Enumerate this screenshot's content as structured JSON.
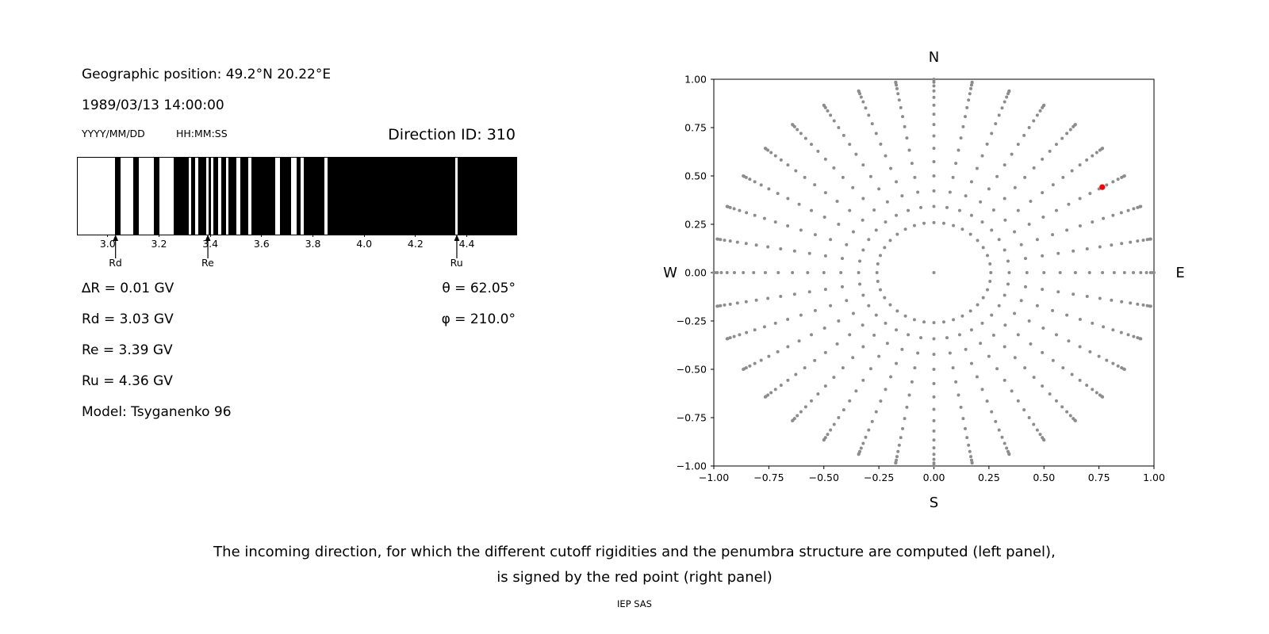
{
  "header": {
    "geographic_position": "Geographic position: 49.2°N 20.22°E",
    "datetime": "1989/03/13 14:00:00",
    "date_format": "YYYY/MM/DD",
    "time_format": "HH:MM:SS",
    "direction_id": "Direction ID: 310"
  },
  "params": {
    "delta_r": "∆R = 0.01 GV",
    "rd": "Rd = 3.03 GV",
    "re": "Re = 3.39 GV",
    "ru": "Ru = 4.36 GV",
    "model": "Model: Tsyganenko 96",
    "theta": "θ = 62.05°",
    "phi": "φ = 210.0°"
  },
  "caption": {
    "line1": "The incoming direction, for which the different cutoff rigidities and the penumbra structure are computed (left panel),",
    "line2": "is signed by the red point (right panel)",
    "credit": "IEP SAS"
  },
  "chart_data": [
    {
      "name": "penumbra_structure",
      "type": "bar",
      "description": "Cosmic-ray penumbra barcode: black bands = allowed rigidity intervals, white = forbidden",
      "xlim": [
        2.88,
        4.59
      ],
      "xticks": [
        3.0,
        3.2,
        3.4,
        3.6,
        3.8,
        4.0,
        4.2,
        4.4
      ],
      "band_color": "#000000",
      "background": "#ffffff",
      "allowed_bands_gv": [
        [
          3.025,
          3.048
        ],
        [
          3.095,
          3.118
        ],
        [
          3.178,
          3.2
        ],
        [
          3.255,
          3.313
        ],
        [
          3.323,
          3.338
        ],
        [
          3.35,
          3.38
        ],
        [
          3.391,
          3.399
        ],
        [
          3.409,
          3.427
        ],
        [
          3.439,
          3.457
        ],
        [
          3.469,
          3.5
        ],
        [
          3.513,
          3.545
        ],
        [
          3.556,
          3.65
        ],
        [
          3.67,
          3.712
        ],
        [
          3.732,
          3.749
        ],
        [
          3.76,
          3.843
        ],
        [
          3.853,
          4.352
        ],
        [
          4.362,
          4.59
        ]
      ],
      "markers": [
        {
          "label": "Rd",
          "value_gv": 3.03
        },
        {
          "label": "Re",
          "value_gv": 3.39
        },
        {
          "label": "Ru",
          "value_gv": 4.36
        }
      ]
    },
    {
      "name": "incoming_directions",
      "type": "scatter",
      "xlim": [
        -1,
        1
      ],
      "ylim": [
        -1,
        1
      ],
      "xticks": [
        -1.0,
        -0.75,
        -0.5,
        -0.25,
        0.0,
        0.25,
        0.5,
        0.75,
        1.0
      ],
      "yticks": [
        -1.0,
        -0.75,
        -0.5,
        -0.25,
        0.0,
        0.25,
        0.5,
        0.75,
        1.0
      ],
      "grid": false,
      "compass_labels": {
        "top": "N",
        "bottom": "S",
        "left": "W",
        "right": "E"
      },
      "gray_points": {
        "color": "#8c8c8c",
        "azimuth_start_deg": 0,
        "azimuth_step_deg": 10,
        "zenith_deg": [
          15,
          20,
          25,
          30,
          35,
          40,
          45,
          50,
          55,
          60,
          65,
          70,
          75,
          80,
          85,
          90
        ],
        "radius_rule": "sin(zenith)",
        "include_center_point": true
      },
      "red_point": {
        "x": 0.765,
        "y": 0.442,
        "theta_deg": 62.05,
        "phi_deg": 210.0,
        "color": "#ff0000"
      }
    }
  ]
}
